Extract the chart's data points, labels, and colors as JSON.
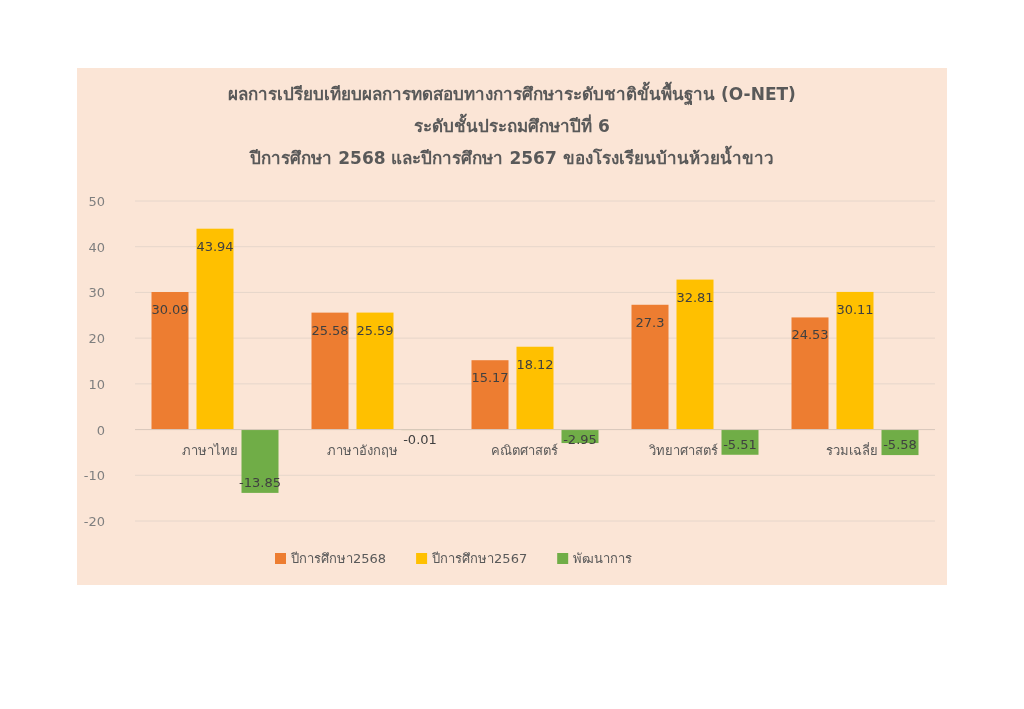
{
  "chart_data": {
    "type": "bar",
    "title": "ผลการเปรียบเทียบผลการทดสอบทางการศึกษาระดับชาติขั้นพื้นฐาน (O-NET)",
    "subtitle": "ระดับชั้นประถมศึกษาปีที่ 6\nปีการศึกษา 2568 และปีการศึกษา 2567 ของโรงเรียนบ้านห้วยน้ำขาว",
    "categories": [
      "ภาษาไทย",
      "ภาษาอังกฤษ",
      "คณิตศาสตร์",
      "วิทยาศาสตร์",
      "รวมเฉลี่ย"
    ],
    "series": [
      {
        "name": "ปีการศึกษา2568",
        "color": "#ed7d31",
        "values": [
          30.09,
          25.58,
          15.17,
          27.3,
          24.53
        ]
      },
      {
        "name": "ปีการศึกษา2567",
        "color": "#ffc000",
        "values": [
          43.94,
          25.59,
          18.12,
          32.81,
          30.11
        ]
      },
      {
        "name": "พัฒนาการ",
        "color": "#70ad47",
        "values": [
          -13.85,
          -0.01,
          -2.95,
          -5.51,
          -5.58
        ]
      }
    ],
    "ylim": [
      -20,
      50
    ],
    "yticks": [
      -20,
      -10,
      0,
      10,
      20,
      30,
      40,
      50
    ],
    "grid": "y",
    "legend": "bottom",
    "data_labels": true
  }
}
